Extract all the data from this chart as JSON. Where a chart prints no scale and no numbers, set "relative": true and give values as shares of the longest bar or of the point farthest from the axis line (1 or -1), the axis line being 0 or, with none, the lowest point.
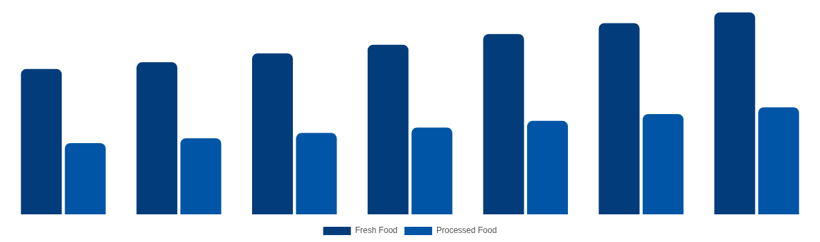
{
  "chart_data": {
    "type": "bar",
    "relative": true,
    "legend": "bottom",
    "grid": false,
    "categories": [
      null,
      null,
      null,
      null,
      null,
      null,
      null
    ],
    "series": [
      {
        "name": "Fresh Food",
        "color": "#033c7a",
        "values": [
          0.72,
          0.753,
          0.797,
          0.84,
          0.893,
          0.947,
          1
        ]
      },
      {
        "name": "Processed Food",
        "color": "#0055a6",
        "values": [
          0.353,
          0.377,
          0.403,
          0.43,
          0.463,
          0.497,
          0.53
        ]
      }
    ]
  }
}
